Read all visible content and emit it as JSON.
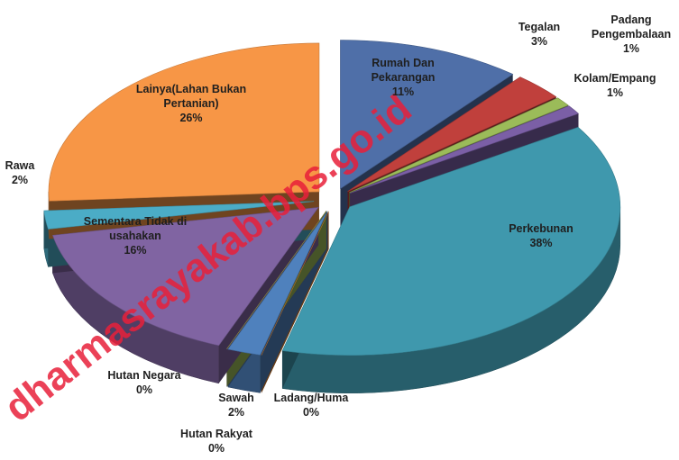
{
  "chart_data": {
    "type": "pie",
    "categories": [
      "Rumah Dan Pekarangan",
      "Tegalan",
      "Padang Pengembalaan",
      "Kolam/Empang",
      "Perkebunan",
      "Ladang/Huma",
      "Sawah",
      "Hutan Rakyat",
      "Hutan Negara",
      "Sementara Tidak di usahakan",
      "Rawa",
      "Lainya(Lahan Bukan Pertanian)"
    ],
    "values": [
      11,
      3,
      1,
      1,
      38,
      0,
      2,
      0,
      0,
      16,
      2,
      26
    ],
    "value_labels": [
      "11%",
      "3%",
      "1%",
      "1%",
      "38%",
      "0%",
      "2%",
      "0%",
      "0%",
      "16%",
      "2%",
      "26%"
    ],
    "colors": [
      "#4f6fa8",
      "#c0403c",
      "#9bbb59",
      "#7b5fa6",
      "#3f98ad",
      "#e3842f",
      "#4f81bd",
      "#c0504d",
      "#9bbb59",
      "#8064a2",
      "#4bacc6",
      "#f79646"
    ],
    "watermark": "dharmasrayakab.bps.go.id"
  }
}
